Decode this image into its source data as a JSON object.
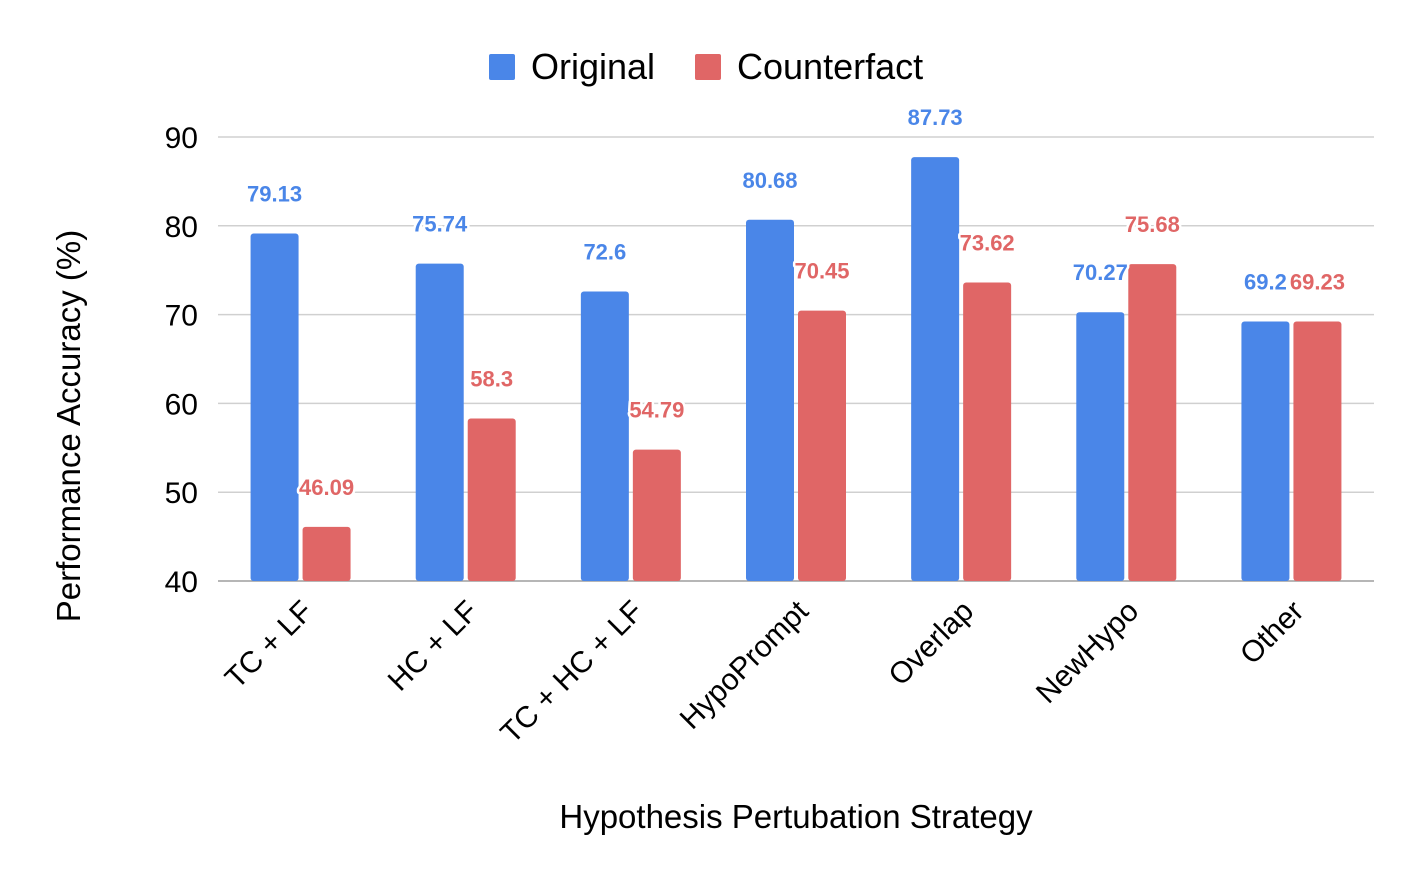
{
  "chart_data": {
    "type": "bar",
    "title": "",
    "xlabel": "Hypothesis Pertubation Strategy",
    "ylabel": "Performance Accuracy (%)",
    "ylim": [
      40,
      90
    ],
    "yticks": [
      40,
      50,
      60,
      70,
      80,
      90
    ],
    "grid": true,
    "legend_position": "top-center",
    "categories": [
      "TC + LF",
      "HC + LF",
      "TC + HC + LF",
      "HypoPrompt",
      "Overlap",
      "NewHypo",
      "Other"
    ],
    "series": [
      {
        "name": "Original",
        "color": "#4a86e8",
        "values": [
          79.13,
          75.74,
          72.6,
          80.68,
          87.73,
          70.27,
          69.23
        ],
        "labels": [
          "79.13",
          "75.74",
          "72.6",
          "80.68",
          "87.73",
          "70.27",
          "69.2"
        ]
      },
      {
        "name": "Counterfact",
        "color": "#e06666",
        "values": [
          46.09,
          58.3,
          54.79,
          70.45,
          73.62,
          75.68,
          69.23
        ],
        "labels": [
          "46.09",
          "58.3",
          "54.79",
          "70.45",
          "73.62",
          "75.68",
          "69.23"
        ]
      }
    ]
  }
}
